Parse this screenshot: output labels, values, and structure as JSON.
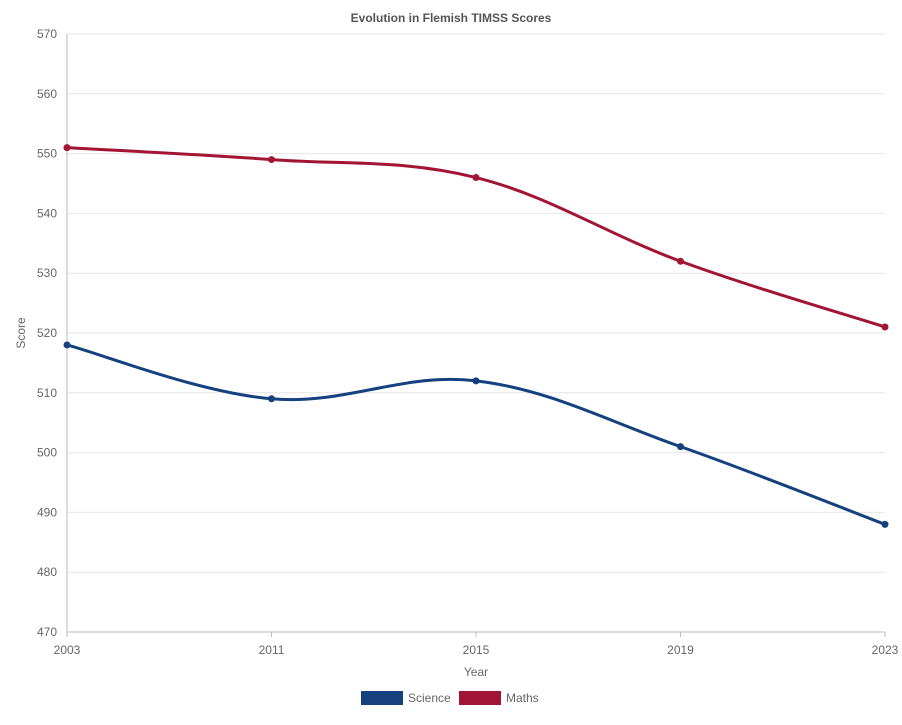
{
  "chart_data": {
    "type": "line",
    "title": "Evolution in Flemish TIMSS Scores",
    "xlabel": "Year",
    "ylabel": "Score",
    "categories": [
      "2003",
      "2011",
      "2015",
      "2019",
      "2023"
    ],
    "ylim": [
      470,
      570
    ],
    "yticks": [
      470,
      480,
      490,
      500,
      510,
      520,
      530,
      540,
      550,
      560,
      570
    ],
    "grid": true,
    "legend_position": "bottom",
    "series": [
      {
        "name": "Science",
        "color": "#15417e",
        "values": [
          518,
          509,
          512,
          501,
          488
        ]
      },
      {
        "name": "Maths",
        "color": "#a31535",
        "values": [
          551,
          549,
          546,
          532,
          521
        ]
      }
    ]
  }
}
